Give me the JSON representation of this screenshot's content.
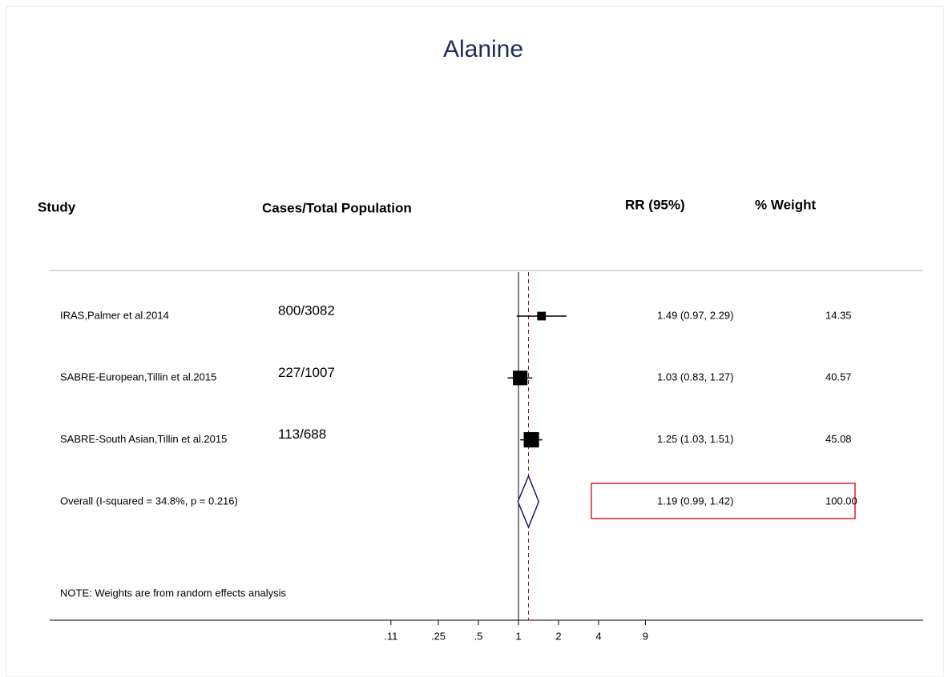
{
  "chart_data": {
    "type": "forest",
    "title": "Alanine",
    "headers": {
      "study": "Study",
      "cases": "Cases/Total Population",
      "rr": "RR (95%)",
      "weight": "% Weight"
    },
    "studies": [
      {
        "name": "IRAS,Palmer et al.2014",
        "cases": "800/3082",
        "value": 1.49,
        "lower": 0.97,
        "upper": 2.29,
        "value_label": "1.49 (0.97, 2.29)",
        "weight": 14.35
      },
      {
        "name": "SABRE-European,Tillin et al.2015",
        "cases": "227/1007",
        "value": 1.03,
        "lower": 0.83,
        "upper": 1.27,
        "value_label": "1.03 (0.83, 1.27)",
        "weight": 40.57
      },
      {
        "name": "SABRE-South Asian,Tillin et al.2015",
        "cases": "113/688",
        "value": 1.25,
        "lower": 1.03,
        "upper": 1.51,
        "value_label": "1.25 (1.03, 1.51)",
        "weight": 45.08
      }
    ],
    "overall": {
      "name": "Overall  (I-squared = 34.8%, p = 0.216)",
      "value": 1.19,
      "lower": 0.99,
      "upper": 1.42,
      "value_label": "1.19 (0.99, 1.42)",
      "weight": 100,
      "weight_label": "100.00"
    },
    "note": "NOTE: Weights are from random effects analysis",
    "null_line": 1,
    "x_scale": "log",
    "xlim": [
      0.0003,
      1100
    ],
    "xticks": [
      {
        "value": 0.11,
        "label": ".11"
      },
      {
        "value": 0.25,
        "label": ".25"
      },
      {
        "value": 0.5,
        "label": ".5"
      },
      1,
      2,
      4,
      9
    ],
    "marker_color": "#000000",
    "diamond_color": "#1a1a6e",
    "overall_line_color": "#8b1a1a"
  }
}
